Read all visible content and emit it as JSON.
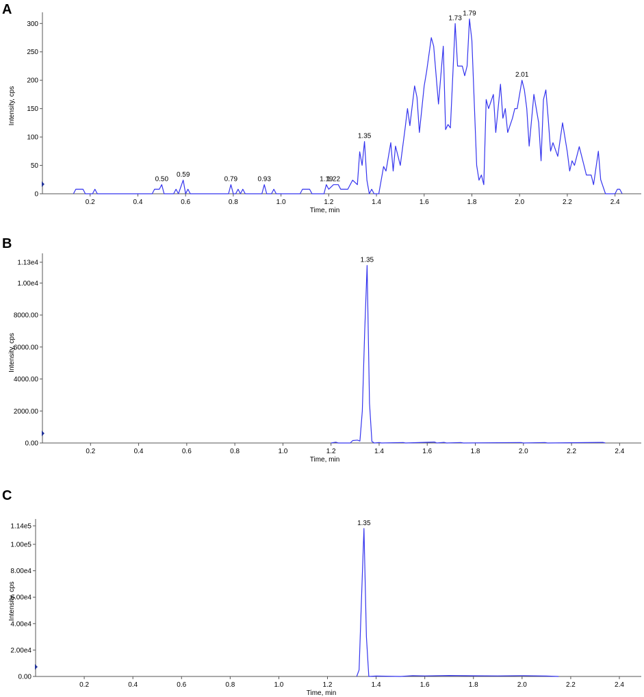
{
  "chart_data": [
    {
      "type": "line",
      "panel": "A",
      "x_label": "Time, min",
      "y_label": "Intensity, cps",
      "color": "#3333ee",
      "x": [
        0.13,
        0.14,
        0.17,
        0.18,
        0.21,
        0.22,
        0.23,
        0.46,
        0.47,
        0.49,
        0.5,
        0.51,
        0.55,
        0.56,
        0.57,
        0.59,
        0.6,
        0.61,
        0.62,
        0.78,
        0.79,
        0.8,
        0.81,
        0.82,
        0.83,
        0.84,
        0.85,
        0.92,
        0.93,
        0.94,
        0.96,
        0.97,
        0.98,
        1.08,
        1.09,
        1.12,
        1.13,
        1.18,
        1.19,
        1.2,
        1.22,
        1.24,
        1.25,
        1.28,
        1.3,
        1.32,
        1.33,
        1.34,
        1.35,
        1.36,
        1.37,
        1.38,
        1.39,
        1.41,
        1.43,
        1.44,
        1.46,
        1.47,
        1.48,
        1.5,
        1.52,
        1.53,
        1.54,
        1.56,
        1.57,
        1.58,
        1.6,
        1.61,
        1.63,
        1.64,
        1.66,
        1.68,
        1.69,
        1.7,
        1.71,
        1.73,
        1.74,
        1.76,
        1.77,
        1.78,
        1.79,
        1.8,
        1.82,
        1.83,
        1.84,
        1.85,
        1.86,
        1.87,
        1.89,
        1.9,
        1.92,
        1.93,
        1.94,
        1.95,
        1.97,
        1.98,
        1.99,
        2.01,
        2.02,
        2.03,
        2.04,
        2.06,
        2.08,
        2.09,
        2.1,
        2.11,
        2.12,
        2.13,
        2.14,
        2.16,
        2.18,
        2.2,
        2.21,
        2.22,
        2.23,
        2.25,
        2.27,
        2.28,
        2.3,
        2.31,
        2.33,
        2.34,
        2.36,
        2.4,
        2.41,
        2.42,
        2.43
      ],
      "values": [
        0,
        8,
        8,
        0,
        0,
        8,
        0,
        0,
        8,
        8,
        16,
        0,
        0,
        8,
        0,
        24,
        0,
        8,
        0,
        0,
        16,
        0,
        0,
        8,
        0,
        8,
        0,
        0,
        16,
        0,
        0,
        8,
        0,
        0,
        8,
        8,
        0,
        0,
        16,
        8,
        16,
        16,
        8,
        8,
        24,
        16,
        74,
        50,
        92,
        24,
        0,
        8,
        0,
        0,
        48,
        40,
        90,
        40,
        84,
        50,
        115,
        150,
        120,
        190,
        170,
        108,
        190,
        215,
        275,
        260,
        158,
        260,
        113,
        122,
        116,
        300,
        225,
        225,
        208,
        225,
        308,
        270,
        50,
        24,
        33,
        16,
        166,
        150,
        175,
        108,
        193,
        133,
        150,
        108,
        133,
        150,
        150,
        200,
        183,
        150,
        84,
        175,
        125,
        58,
        166,
        183,
        133,
        75,
        90,
        66,
        125,
        74,
        40,
        58,
        50,
        83,
        50,
        33,
        33,
        16,
        75,
        25,
        0,
        0,
        8,
        8,
        0
      ],
      "peak_labels": [
        {
          "value": 0.5,
          "label": "0.50"
        },
        0.59,
        0.79,
        0.93,
        1.19,
        1.22,
        1.35,
        1.73,
        1.79,
        2.01
      ],
      "xlim": [
        0,
        2.51
      ],
      "ylim": [
        0,
        310
      ],
      "xticks": [
        0.2,
        0.4,
        0.6,
        0.8,
        {
          "value": 1,
          "label": "1.0"
        },
        1.2,
        1.4,
        1.6,
        1.8,
        {
          "value": 2,
          "label": "2.0"
        },
        2.2,
        2.4
      ],
      "yticks": [
        0,
        50,
        100,
        150,
        200,
        250,
        300
      ]
    },
    {
      "type": "line",
      "panel": "B",
      "x_label": "Time, min",
      "y_label": "Intensity, cps",
      "color": "#3333ee",
      "x": [
        1.2,
        1.22,
        1.23,
        1.28,
        1.29,
        1.31,
        1.32,
        1.33,
        1.34,
        1.35,
        1.36,
        1.37,
        1.38,
        1.4,
        1.41,
        1.5,
        1.51,
        1.63,
        1.64,
        1.67,
        1.68,
        1.74,
        1.75,
        1.99,
        2.0,
        2.09,
        2.1,
        2.33,
        2.34
      ],
      "values": [
        0,
        50,
        0,
        0,
        150,
        180,
        120,
        2000,
        7000,
        11100,
        2500,
        100,
        0,
        30,
        0,
        30,
        0,
        60,
        0,
        40,
        0,
        30,
        0,
        30,
        0,
        30,
        0,
        40,
        0
      ],
      "peak_labels": [
        1.35
      ],
      "xlim": [
        0,
        2.49
      ],
      "ylim": [
        0,
        11300
      ],
      "xticks": [
        0.2,
        0.4,
        0.6,
        0.8,
        {
          "value": 1,
          "label": "1.0"
        },
        1.2,
        1.4,
        1.6,
        1.8,
        {
          "value": 2,
          "label": "2.0"
        },
        2.2,
        2.4
      ],
      "yticks": [
        {
          "value": 0,
          "label": "0.00"
        },
        {
          "value": 2000,
          "label": "2000.00"
        },
        {
          "value": 4000,
          "label": "4000.00"
        },
        {
          "value": 6000,
          "label": "6000.00"
        },
        {
          "value": 8000,
          "label": "8000.00"
        },
        {
          "value": 10000,
          "label": "1.00e4"
        },
        {
          "value": 11300,
          "label": "1.13e4"
        }
      ]
    },
    {
      "type": "line",
      "panel": "C",
      "x_label": "Time, min",
      "y_label": "Intensity, cps",
      "color": "#3333ee",
      "x": [
        1.32,
        1.33,
        1.34,
        1.35,
        1.36,
        1.37,
        1.4,
        1.5,
        1.55,
        1.6,
        1.7,
        1.8,
        1.9,
        2.0,
        2.1,
        2.15
      ],
      "values": [
        0,
        5000,
        60000,
        112000,
        30000,
        0,
        300,
        0,
        600,
        400,
        700,
        500,
        400,
        600,
        300,
        0
      ],
      "peak_labels": [
        1.35
      ],
      "xlim": [
        0,
        2.49
      ],
      "ylim": [
        0,
        114000
      ],
      "xticks": [
        0.2,
        0.4,
        0.6,
        0.8,
        {
          "value": 1,
          "label": "1.0"
        },
        1.2,
        1.4,
        1.6,
        1.8,
        {
          "value": 2,
          "label": "2.0"
        },
        2.2,
        2.4
      ],
      "yticks": [
        {
          "value": 0,
          "label": "0.00"
        },
        {
          "value": 20000,
          "label": "2.00e4"
        },
        {
          "value": 40000,
          "label": "4.00e4"
        },
        {
          "value": 60000,
          "label": "6.00e4"
        },
        {
          "value": 80000,
          "label": "8.00e4"
        },
        {
          "value": 100000,
          "label": "1.00e5"
        },
        {
          "value": 114000,
          "label": "1.14e5"
        }
      ]
    }
  ]
}
